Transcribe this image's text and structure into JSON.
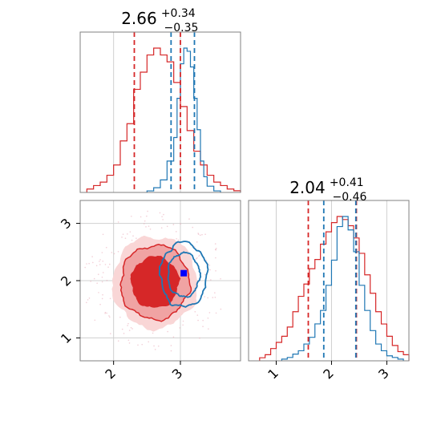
{
  "chart_data": [
    {
      "type": "histogram",
      "panel": "marginal-x",
      "title": {
        "value": "2.66",
        "upper": "+0.34",
        "lower": "−0.35"
      },
      "xlim": [
        1.5,
        3.9
      ],
      "grid": true,
      "series": [
        {
          "name": "",
          "color": "#d62728",
          "bins": [
            1.6,
            1.7,
            1.8,
            1.9,
            2.0,
            2.1,
            2.2,
            2.3,
            2.4,
            2.5,
            2.6,
            2.7,
            2.8,
            2.9,
            3.0,
            3.1,
            3.2,
            3.3,
            3.4,
            3.5,
            3.6,
            3.7,
            3.8
          ],
          "values": [
            0.01,
            0.02,
            0.03,
            0.05,
            0.08,
            0.15,
            0.2,
            0.3,
            0.35,
            0.4,
            0.42,
            0.4,
            0.38,
            0.32,
            0.25,
            0.18,
            0.12,
            0.08,
            0.05,
            0.03,
            0.02,
            0.01,
            0.005
          ],
          "quantiles": [
            2.31,
            3.0
          ]
        },
        {
          "name": "",
          "color": "#1f77b4",
          "bins": [
            2.5,
            2.6,
            2.7,
            2.8,
            2.9,
            2.95,
            3.0,
            3.05,
            3.1,
            3.15,
            3.2,
            3.25,
            3.3,
            3.35,
            3.4,
            3.5
          ],
          "values": [
            0.01,
            0.03,
            0.08,
            0.2,
            0.35,
            0.6,
            0.82,
            0.92,
            0.9,
            0.8,
            0.6,
            0.4,
            0.2,
            0.1,
            0.04,
            0.01
          ],
          "quantiles": [
            2.86,
            3.21
          ]
        }
      ]
    },
    {
      "type": "histogram",
      "panel": "marginal-y",
      "title": {
        "value": "2.04",
        "upper": "+0.41",
        "lower": "−0.46"
      },
      "xlim": [
        0.5,
        3.4
      ],
      "ticks": [
        "1",
        "2",
        "3"
      ],
      "grid": true,
      "series": [
        {
          "name": "",
          "color": "#d62728",
          "bins": [
            0.7,
            0.8,
            0.9,
            1.0,
            1.1,
            1.2,
            1.3,
            1.4,
            1.5,
            1.6,
            1.7,
            1.8,
            1.9,
            2.0,
            2.1,
            2.2,
            2.3,
            2.4,
            2.5,
            2.6,
            2.7,
            2.8,
            2.9,
            3.0,
            3.1,
            3.2,
            3.3
          ],
          "values": [
            0.01,
            0.02,
            0.04,
            0.06,
            0.08,
            0.11,
            0.16,
            0.21,
            0.25,
            0.3,
            0.33,
            0.38,
            0.42,
            0.45,
            0.47,
            0.46,
            0.44,
            0.4,
            0.35,
            0.28,
            0.22,
            0.16,
            0.12,
            0.08,
            0.05,
            0.03,
            0.02
          ],
          "quantiles": [
            1.58,
            2.45
          ]
        },
        {
          "name": "",
          "color": "#1f77b4",
          "bins": [
            1.1,
            1.2,
            1.3,
            1.4,
            1.5,
            1.6,
            1.7,
            1.8,
            1.9,
            2.0,
            2.1,
            2.2,
            2.3,
            2.4,
            2.5,
            2.6,
            2.7,
            2.8,
            2.9,
            3.0,
            3.1,
            3.2
          ],
          "values": [
            0.01,
            0.02,
            0.04,
            0.06,
            0.1,
            0.14,
            0.22,
            0.3,
            0.45,
            0.6,
            0.8,
            0.86,
            0.78,
            0.65,
            0.45,
            0.3,
            0.18,
            0.1,
            0.06,
            0.03,
            0.02,
            0.01
          ],
          "quantiles": [
            1.86,
            2.44
          ]
        }
      ]
    },
    {
      "type": "contour",
      "panel": "joint",
      "xlim": [
        1.5,
        3.9
      ],
      "ylim": [
        0.6,
        3.4
      ],
      "xticks": [
        "2",
        "3"
      ],
      "yticks": [
        "1",
        "2",
        "3"
      ],
      "grid": true,
      "series": [
        {
          "name": "",
          "color": "#d62728",
          "center": [
            2.62,
            1.97
          ],
          "spread": [
            0.55,
            0.65
          ],
          "filled": true
        },
        {
          "name": "",
          "color": "#1f77b4",
          "center": [
            3.05,
            2.1
          ],
          "spread": [
            0.28,
            0.45
          ],
          "filled": false
        }
      ],
      "marker": {
        "x": 3.05,
        "y": 2.13,
        "color": "#0000ff"
      }
    }
  ]
}
